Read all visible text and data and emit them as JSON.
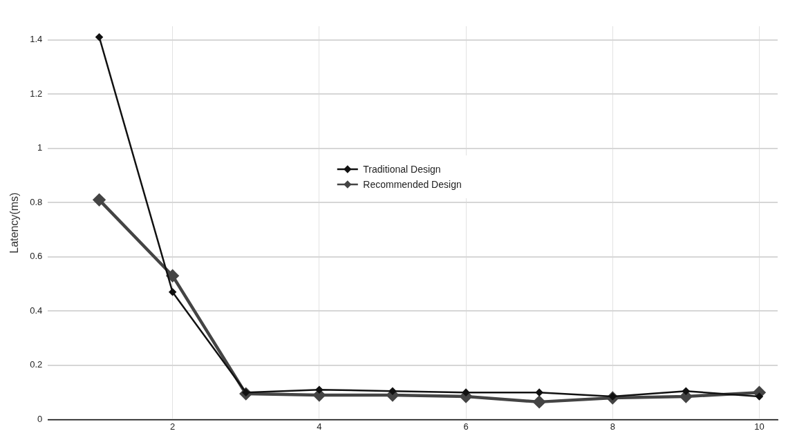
{
  "chart_data": {
    "type": "line",
    "ylabel": "Latency(ms)",
    "x": [
      1,
      2,
      3,
      4,
      5,
      6,
      7,
      8,
      9,
      10
    ],
    "xlim": [
      0.3,
      10.25
    ],
    "xticks": [
      2,
      4,
      6,
      8,
      10
    ],
    "ylim": [
      0,
      1.45
    ],
    "yticks": [
      0,
      0.2,
      0.4,
      0.6,
      0.8,
      1,
      1.2,
      1.4
    ],
    "series": [
      {
        "name": "Traditional Design",
        "color": "#111111",
        "values": [
          1.41,
          0.47,
          0.1,
          0.11,
          0.105,
          0.1,
          0.1,
          0.085,
          0.105,
          0.085
        ]
      },
      {
        "name": "Recommended Design",
        "color": "#444444",
        "values": [
          0.81,
          0.53,
          0.095,
          0.09,
          0.09,
          0.085,
          0.065,
          0.08,
          0.085,
          0.1
        ]
      }
    ],
    "grid": true,
    "legend": "center",
    "marker": "diamond",
    "line_style": "solid"
  }
}
